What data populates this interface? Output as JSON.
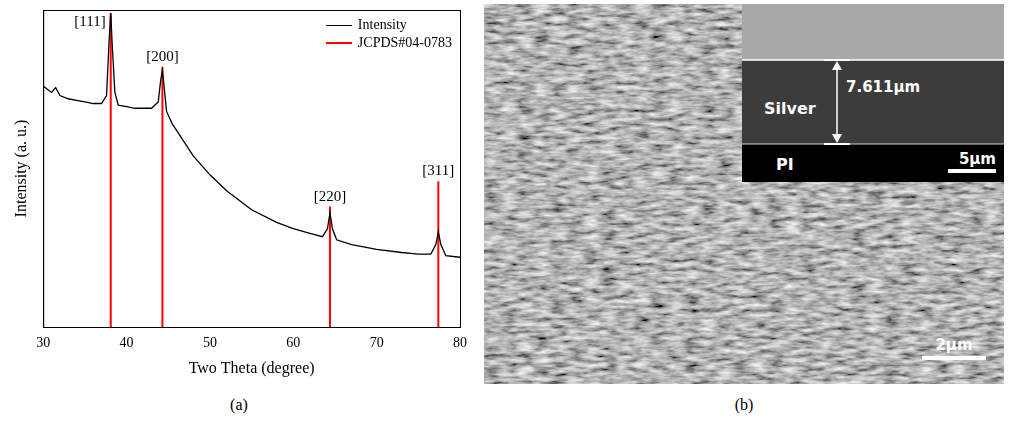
{
  "chart_data": {
    "type": "line",
    "x_label": "Two Theta (degree)",
    "y_label": "Intensity (a. u.)",
    "xlim": [
      30,
      80
    ],
    "xticks": [
      30,
      40,
      50,
      60,
      70,
      80
    ],
    "ylim": [
      0,
      100
    ],
    "grid": false,
    "tick_labels": "x",
    "legend": "upper right",
    "series": [
      {
        "name": "Intensity",
        "color": "#000000",
        "type": "line",
        "x": [
          30,
          30.5,
          31,
          31.5,
          32,
          33,
          34,
          35,
          36,
          37,
          37.6,
          37.9,
          38.1,
          38.3,
          38.6,
          39,
          40,
          41,
          42,
          43,
          43.8,
          44.1,
          44.3,
          44.5,
          44.8,
          45.5,
          46,
          47,
          48,
          50,
          52,
          55,
          58,
          60,
          62,
          63.5,
          64.1,
          64.4,
          64.7,
          65.2,
          67,
          70,
          73,
          75,
          76.5,
          77.1,
          77.4,
          77.7,
          78.3,
          80
        ],
        "values": [
          76,
          75,
          74,
          75.5,
          73,
          72,
          71.5,
          71,
          70.5,
          70.5,
          73,
          90,
          99,
          88,
          74,
          70,
          69.5,
          69,
          69,
          69,
          71,
          78,
          81,
          76,
          68,
          64,
          62,
          58,
          54,
          48,
          43,
          37,
          33,
          31,
          29.5,
          28.5,
          31,
          36,
          31,
          27.5,
          26,
          24.5,
          23.5,
          23,
          23,
          26,
          30,
          26,
          22.5,
          22
        ]
      },
      {
        "name": "JCPDS#04-0783",
        "color": "#ff0000",
        "type": "stick",
        "x": [
          38.1,
          44.3,
          64.4,
          77.4
        ],
        "values": [
          99,
          82,
          38,
          46
        ]
      }
    ],
    "annotations": [
      {
        "text": "[111]",
        "x": 38.1,
        "y": 99
      },
      {
        "text": "[200]",
        "x": 44.3,
        "y": 82
      },
      {
        "text": "[220]",
        "x": 64.4,
        "y": 38
      },
      {
        "text": "[311]",
        "x": 77.4,
        "y": 46
      }
    ]
  },
  "panel_labels": [
    "(a)",
    "(b)"
  ],
  "image": {
    "scale_bar": "2μm",
    "inset": {
      "layers": [
        "Silver",
        "PI"
      ],
      "thickness": "7.611μm",
      "scale_bar": "5μm"
    }
  }
}
